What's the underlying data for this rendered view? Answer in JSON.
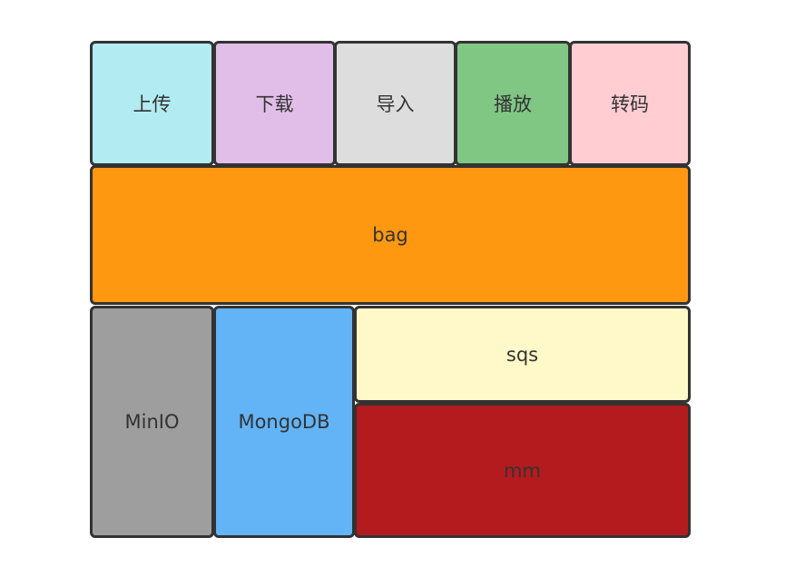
{
  "boxes": {
    "upload": {
      "label": "上传",
      "color": "#b3ebf2"
    },
    "download": {
      "label": "下载",
      "color": "#e1bee7"
    },
    "import": {
      "label": "导入",
      "color": "#dddddd"
    },
    "play": {
      "label": "播放",
      "color": "#81c784"
    },
    "transcode": {
      "label": "转码",
      "color": "#ffcdd2"
    },
    "bag": {
      "label": "bag",
      "color": "#ff9811"
    },
    "minio": {
      "label": "MinIO",
      "color": "#9e9e9e"
    },
    "mongodb": {
      "label": "MongoDB",
      "color": "#62b4f6"
    },
    "sqs": {
      "label": "sqs",
      "color": "#fff8c8"
    },
    "mm": {
      "label": "mm",
      "color": "#b31b1f"
    }
  }
}
